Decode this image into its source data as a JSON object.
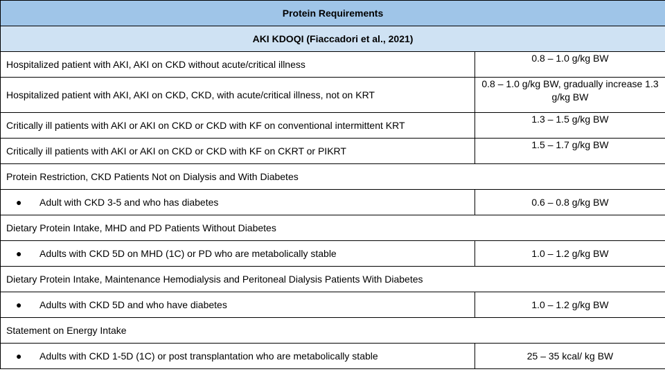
{
  "header": {
    "title": "Protein Requirements",
    "subtitle": "AKI KDOQI (Fiaccadori et al., 2021)"
  },
  "rows": [
    {
      "label": "Hospitalized patient with AKI, AKI on CKD without acute/critical illness",
      "value": "0.8 – 1.0 g/kg BW"
    },
    {
      "label": "Hospitalized patient with AKI, AKI on CKD, CKD, with acute/critical illness, not on KRT",
      "value": "0.8 – 1.0 g/kg BW, gradually increase 1.3 g/kg BW"
    },
    {
      "label": "Critically ill patients with AKI or AKI on CKD or CKD with KF on conventional intermittent KRT",
      "value": "1.3 – 1.5 g/kg BW"
    },
    {
      "label": "Critically ill patients with AKI or AKI on CKD or CKD with KF on CKRT or PIKRT",
      "value": "1.5 – 1.7 g/kg BW"
    }
  ],
  "sections": [
    {
      "heading": "Protein Restriction, CKD Patients Not on Dialysis and With Diabetes",
      "item": {
        "bullet": "●",
        "label": "Adult with CKD 3-5 and who has diabetes",
        "value": "0.6 – 0.8 g/kg BW"
      }
    },
    {
      "heading": "Dietary Protein Intake, MHD and PD Patients Without Diabetes",
      "item": {
        "bullet": "●",
        "label": "Adults with CKD 5D on MHD (1C) or PD who are metabolically stable",
        "value": "1.0 – 1.2 g/kg BW"
      }
    },
    {
      "heading": "Dietary Protein Intake, Maintenance Hemodialysis and Peritoneal Dialysis Patients With Diabetes",
      "item": {
        "bullet": "●",
        "label": "Adults with CKD 5D and who have diabetes",
        "value": "1.0 – 1.2 g/kg BW"
      }
    },
    {
      "heading": "Statement on Energy Intake",
      "item": {
        "bullet": "●",
        "label": "Adults with CKD 1-5D (1C) or post transplantation who are metabolically stable",
        "value": "25 – 35 kcal/ kg BW"
      }
    }
  ]
}
